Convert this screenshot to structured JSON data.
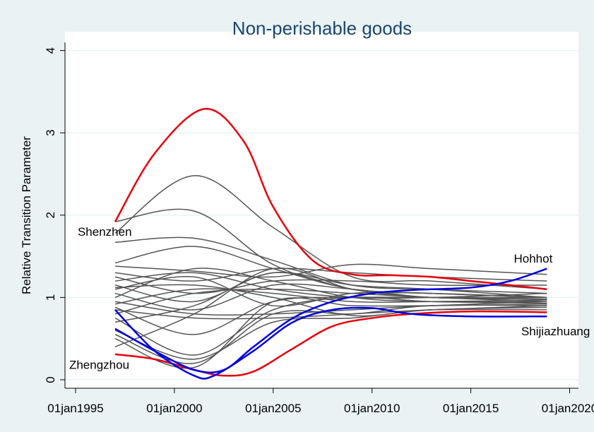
{
  "chart_data": {
    "type": "line",
    "title": "Non-perishable goods",
    "xlabel": "",
    "ylabel": "Relative Transition Parameter",
    "xlim": [
      1994.5,
      2020.4
    ],
    "ylim": [
      -0.1,
      4.1
    ],
    "x_ticks": [
      1995,
      2000,
      2005,
      2010,
      2015,
      2020
    ],
    "x_tick_labels": [
      "01jan1995",
      "01jan2000",
      "01jan2005",
      "01jan2010",
      "01jan2015",
      "01jan2020"
    ],
    "y_ticks": [
      0,
      1,
      2,
      3,
      4
    ],
    "y_tick_labels": [
      "0",
      "1",
      "2",
      "3",
      "4"
    ],
    "grid": true,
    "colors": {
      "background": "#eaf2f3",
      "plot": "#ffffff",
      "title": "#1a476f",
      "highlight_high": "#e8000b",
      "highlight_low": "#0000e0",
      "other": "#555555",
      "grid": "#eaf2f3"
    },
    "annotations": [
      {
        "text": "Shenzhen",
        "x": 1997,
        "y": 1.8
      },
      {
        "text": "Zhengzhou",
        "x": 1997,
        "y": 0.2
      },
      {
        "text": "Hohhot",
        "x": 2018.85,
        "y": 1.4
      },
      {
        "text": "Shijiazhuang",
        "x": 2018.85,
        "y": 0.6
      }
    ],
    "highlight_series": [
      {
        "name": "Shenzhen",
        "color": "#e8000b",
        "x": [
          1997,
          1999,
          2001.5,
          2003.5,
          2005,
          2007,
          2009,
          2011,
          2013,
          2015,
          2017,
          2018.85
        ],
        "y": [
          1.92,
          2.75,
          3.29,
          2.9,
          2.1,
          1.45,
          1.28,
          1.27,
          1.25,
          1.2,
          1.15,
          1.1
        ]
      },
      {
        "name": "Zhengzhou",
        "color": "#e8000b",
        "x": [
          1997,
          1999,
          2001,
          2002.5,
          2004,
          2006,
          2008,
          2010,
          2012,
          2015,
          2018.85
        ],
        "y": [
          0.31,
          0.25,
          0.12,
          0.05,
          0.1,
          0.38,
          0.65,
          0.75,
          0.8,
          0.83,
          0.82
        ]
      },
      {
        "name": "Hohhot",
        "color": "#0000e0",
        "x": [
          1997,
          1999,
          2001,
          2002.5,
          2004,
          2006,
          2008,
          2010,
          2012,
          2015,
          2017,
          2018.85
        ],
        "y": [
          0.62,
          0.35,
          0.12,
          0.12,
          0.4,
          0.75,
          0.95,
          1.05,
          1.09,
          1.12,
          1.2,
          1.35
        ]
      },
      {
        "name": "Shijiazhuang",
        "color": "#0000e0",
        "x": [
          1997,
          1999,
          2001,
          2002,
          2004,
          2006,
          2008,
          2010,
          2012,
          2015,
          2018.85
        ],
        "y": [
          0.85,
          0.35,
          0.05,
          0.05,
          0.35,
          0.7,
          0.85,
          0.87,
          0.8,
          0.77,
          0.77
        ]
      }
    ],
    "other_series_x": [
      1997,
      2001,
      2005,
      2009,
      2013,
      2018.85
    ],
    "other_series": [
      [
        1.78,
        2.48,
        1.85,
        1.25,
        1.2,
        1.1
      ],
      [
        1.92,
        2.05,
        1.4,
        1.1,
        1.05,
        1.0
      ],
      [
        1.67,
        1.72,
        1.45,
        1.15,
        1.1,
        1.05
      ],
      [
        1.42,
        1.62,
        1.35,
        1.1,
        1.0,
        1.0
      ],
      [
        1.38,
        1.32,
        1.25,
        1.4,
        1.35,
        1.28
      ],
      [
        1.3,
        1.2,
        1.35,
        1.3,
        1.25,
        1.2
      ],
      [
        1.25,
        1.05,
        1.2,
        1.2,
        1.15,
        1.15
      ],
      [
        1.2,
        1.3,
        1.1,
        1.0,
        1.0,
        1.05
      ],
      [
        1.15,
        0.95,
        1.3,
        1.15,
        1.1,
        1.0
      ],
      [
        1.1,
        1.25,
        0.9,
        1.05,
        1.05,
        1.0
      ],
      [
        1.05,
        0.85,
        1.15,
        1.1,
        1.0,
        0.98
      ],
      [
        1.0,
        1.35,
        1.2,
        1.0,
        0.95,
        0.95
      ],
      [
        0.95,
        0.8,
        0.8,
        0.85,
        0.9,
        0.95
      ],
      [
        0.92,
        1.1,
        1.05,
        0.95,
        0.95,
        0.97
      ],
      [
        0.88,
        0.55,
        0.95,
        1.0,
        1.0,
        1.0
      ],
      [
        0.85,
        0.75,
        0.75,
        0.8,
        0.85,
        0.9
      ],
      [
        0.8,
        1.05,
        1.1,
        1.05,
        1.0,
        0.95
      ],
      [
        0.75,
        0.3,
        0.85,
        1.0,
        0.95,
        0.93
      ],
      [
        0.7,
        0.9,
        1.3,
        1.1,
        1.05,
        1.0
      ],
      [
        0.6,
        0.25,
        0.7,
        0.75,
        0.85,
        0.88
      ],
      [
        0.5,
        0.15,
        0.95,
        0.9,
        0.9,
        0.92
      ],
      [
        0.4,
        0.8,
        1.35,
        1.1,
        1.0,
        0.98
      ],
      [
        0.55,
        0.2,
        0.8,
        0.8,
        0.9,
        0.9
      ],
      [
        1.12,
        1.15,
        1.0,
        0.78,
        0.85,
        0.85
      ]
    ]
  }
}
